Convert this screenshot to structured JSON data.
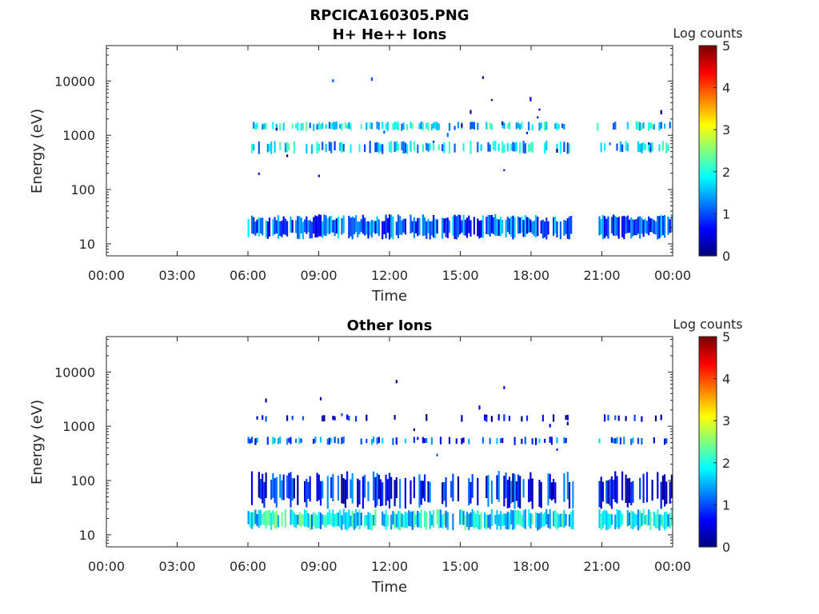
{
  "figure_title": "RPCICA160305.PNG",
  "chart_data": [
    {
      "type": "heatmap",
      "title": "H+ He++ Ions",
      "xlabel": "Time",
      "ylabel": "Energy (eV)",
      "x_ticks": [
        "00:00",
        "03:00",
        "06:00",
        "09:00",
        "12:00",
        "15:00",
        "18:00",
        "21:00",
        "00:00"
      ],
      "x_range_hours": [
        0,
        24
      ],
      "y_scale": "log",
      "y_ticks": [
        "10",
        "100",
        "1000",
        "10000"
      ],
      "y_range_eV": [
        6,
        45000
      ],
      "colorbar": {
        "label": "Log counts",
        "ticks": [
          "0",
          "1",
          "2",
          "3",
          "4",
          "5"
        ],
        "range": [
          0,
          5
        ],
        "colormap": "jet"
      },
      "data_coverage_hours": [
        [
          6.0,
          19.8
        ],
        [
          20.8,
          24.0
        ]
      ],
      "bands": [
        {
          "e_min": 12,
          "e_max": 35,
          "level": 1.1,
          "density": 0.85
        },
        {
          "e_min": 450,
          "e_max": 800,
          "level": 1.6,
          "density": 0.45
        },
        {
          "e_min": 1200,
          "e_max": 1800,
          "level": 1.7,
          "density": 0.5
        },
        {
          "e_min": 35,
          "e_max": 12000,
          "level": 0.6,
          "density": 0.09
        }
      ]
    },
    {
      "type": "heatmap",
      "title": "Other Ions",
      "xlabel": "Time",
      "ylabel": "Energy (eV)",
      "x_ticks": [
        "00:00",
        "03:00",
        "06:00",
        "09:00",
        "12:00",
        "15:00",
        "18:00",
        "21:00",
        "00:00"
      ],
      "x_range_hours": [
        0,
        24
      ],
      "y_scale": "log",
      "y_ticks": [
        "10",
        "100",
        "1000",
        "10000"
      ],
      "y_range_eV": [
        6,
        45000
      ],
      "colorbar": {
        "label": "Log counts",
        "ticks": [
          "0",
          "1",
          "2",
          "3",
          "4",
          "5"
        ],
        "range": [
          0,
          5
        ],
        "colormap": "jet"
      },
      "data_coverage_hours": [
        [
          6.0,
          19.8
        ],
        [
          20.8,
          24.0
        ]
      ],
      "bands": [
        {
          "e_min": 12,
          "e_max": 30,
          "level": 1.8,
          "density": 0.9
        },
        {
          "e_min": 30,
          "e_max": 150,
          "level": 0.7,
          "density": 0.55
        },
        {
          "e_min": 450,
          "e_max": 650,
          "level": 1.0,
          "density": 0.35
        },
        {
          "e_min": 1200,
          "e_max": 1700,
          "level": 0.4,
          "density": 0.15
        },
        {
          "e_min": 150,
          "e_max": 8000,
          "level": 0.4,
          "density": 0.06
        }
      ]
    }
  ]
}
